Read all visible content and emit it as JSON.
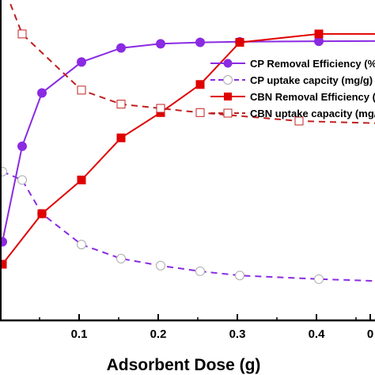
{
  "chart_data": {
    "type": "line",
    "title": "",
    "xlabel": "Adsorbent Dose (g)",
    "ylabel": "",
    "x_ticks": [
      "0.1",
      "0.2",
      "0.3",
      "0.4",
      "0"
    ],
    "xlim": [
      0.0,
      0.47
    ],
    "ylim": [
      0,
      100
    ],
    "grid": false,
    "legend_position": "upper-right",
    "series": [
      {
        "name": "CP Removal Efficiency (%",
        "color": "#8a2be2",
        "line": "solid",
        "marker": "circle-filled",
        "x": [
          0.0,
          0.025,
          0.05,
          0.1,
          0.15,
          0.2,
          0.25,
          0.3,
          0.4,
          0.5
        ],
        "y": [
          28,
          62,
          81,
          92,
          97,
          98.5,
          99,
          99.2,
          99.4,
          99.5
        ]
      },
      {
        "name": "CP uptake capcity (mg/g)",
        "color": "#8a2be2",
        "line": "dashed",
        "marker": "circle-open",
        "x": [
          0.0,
          0.025,
          0.05,
          0.1,
          0.15,
          0.2,
          0.25,
          0.3,
          0.4,
          0.5
        ],
        "y": [
          53,
          50,
          38,
          27,
          22,
          19.5,
          17.5,
          16,
          14.7,
          13.8
        ]
      },
      {
        "name": "CBN Removal Efficiency (",
        "color": "#e00000",
        "line": "solid",
        "marker": "square-filled",
        "x": [
          0.0,
          0.05,
          0.1,
          0.15,
          0.2,
          0.25,
          0.3,
          0.4,
          0.5
        ],
        "y": [
          20,
          38,
          50,
          65,
          74,
          84,
          99,
          102,
          102
        ]
      },
      {
        "name": "CBN uptake capacity (mg/",
        "color": "#c02020",
        "line": "dashed",
        "marker": "square-open",
        "x": [
          0.0,
          0.025,
          0.1,
          0.15,
          0.2,
          0.25,
          0.375,
          0.5
        ],
        "y": [
          120,
          102,
          82,
          77,
          75.5,
          74,
          71,
          70
        ]
      }
    ]
  }
}
